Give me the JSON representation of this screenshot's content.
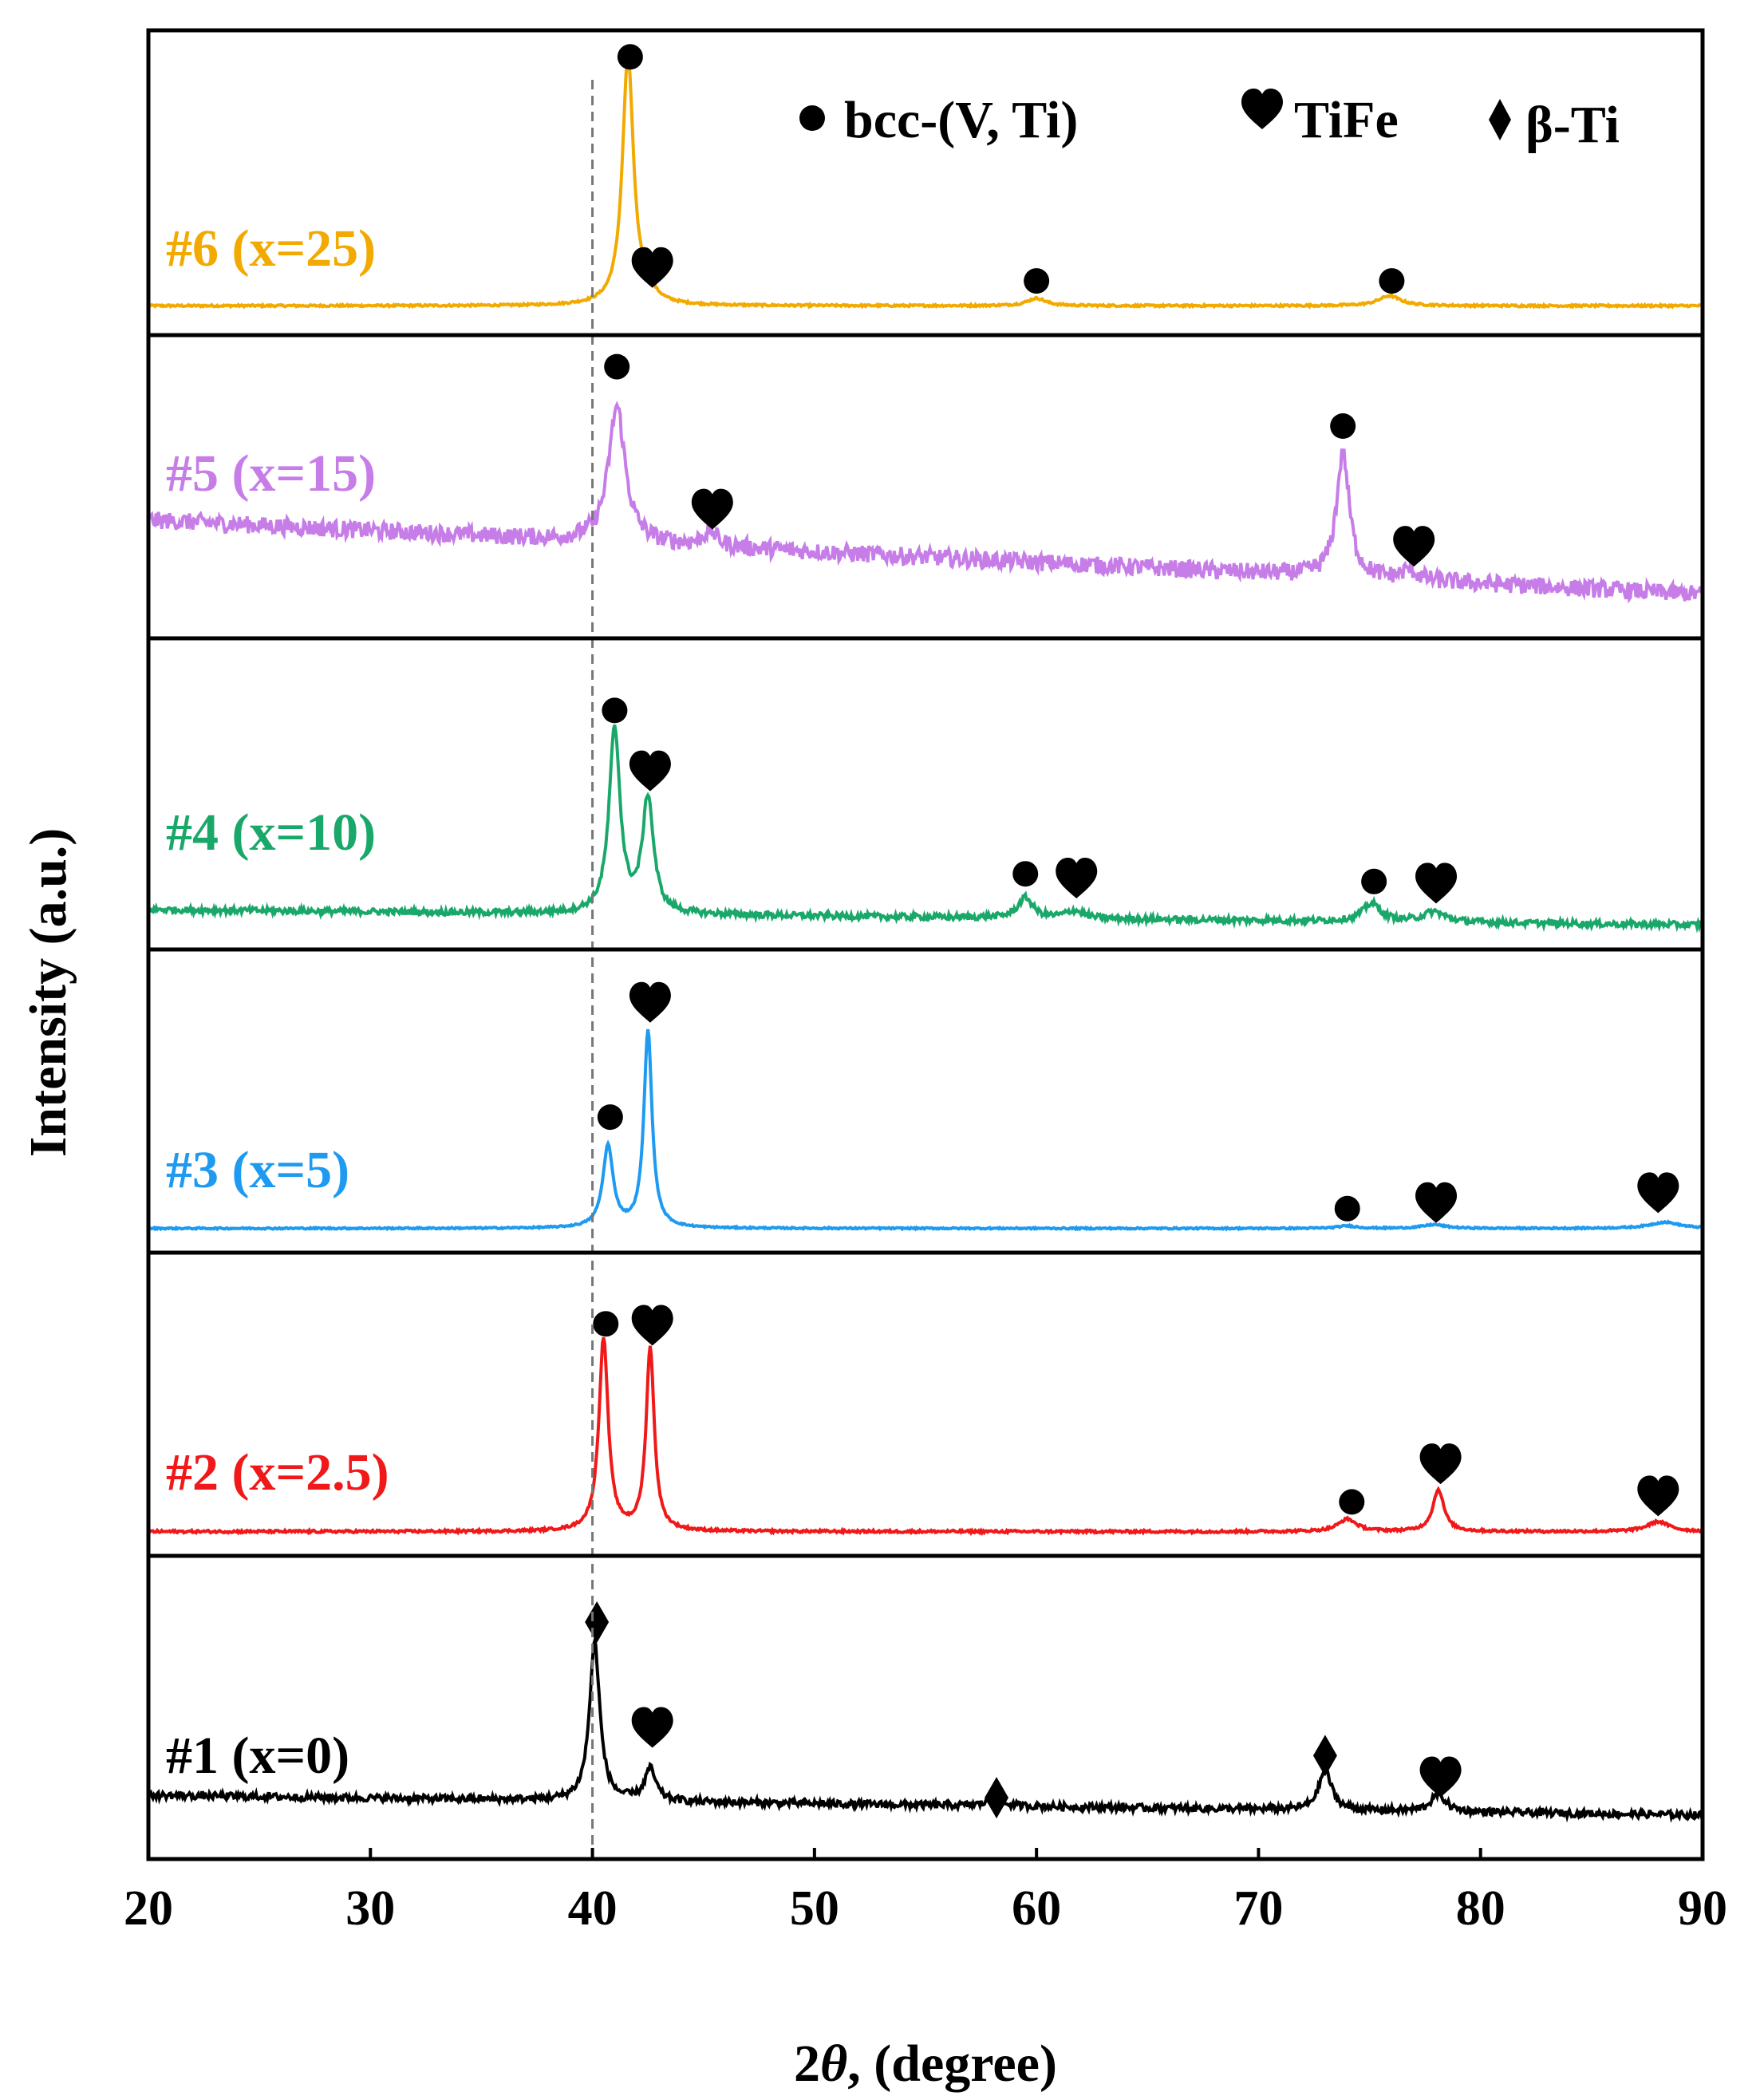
{
  "chart_data": {
    "type": "line",
    "title": "",
    "xlabel": "2θ, (degree)",
    "xlabel_prefix": "2",
    "xlabel_theta": "θ",
    "xlabel_suffix": ", (degree)",
    "ylabel": "Intensity (a.u.)",
    "xlim": [
      20,
      90
    ],
    "xticks": [
      "20",
      "30",
      "40",
      "50",
      "60",
      "70",
      "80",
      "90"
    ],
    "reference_line_x": 40,
    "legend": [
      {
        "symbol": "circle",
        "label": "bcc-(V, Ti)"
      },
      {
        "symbol": "heart",
        "label": "TiFe"
      },
      {
        "symbol": "diamond",
        "label": "β-Ti"
      }
    ],
    "series": [
      {
        "name": "#6 (x=25)",
        "color": "#F2A900",
        "noise": 0.004,
        "baseline_start": 0.06,
        "baseline_end": 0.06,
        "peaks": [
          {
            "x": 41.6,
            "h": 1.0,
            "w": 0.3
          },
          {
            "x": 42.4,
            "h": 0.05,
            "w": 0.4
          },
          {
            "x": 60.0,
            "h": 0.03,
            "w": 0.5
          },
          {
            "x": 75.9,
            "h": 0.04,
            "w": 0.6
          }
        ],
        "markers": [
          {
            "x": 41.7,
            "symbol": "circle",
            "level": 1.06
          },
          {
            "x": 42.7,
            "symbol": "heart",
            "level": 0.19
          },
          {
            "x": 60.0,
            "symbol": "circle",
            "level": 0.16
          },
          {
            "x": 76.0,
            "symbol": "circle",
            "level": 0.16
          }
        ]
      },
      {
        "name": "#5 (x=15)",
        "color": "#C77DE8",
        "noise": 0.035,
        "baseline_start": 0.42,
        "baseline_end": 0.12,
        "peaks": [
          {
            "x": 41.1,
            "h": 0.55,
            "w": 0.45
          },
          {
            "x": 45.3,
            "h": 0.06,
            "w": 0.4
          },
          {
            "x": 73.8,
            "h": 0.5,
            "w": 0.35
          },
          {
            "x": 76.8,
            "h": 0.04,
            "w": 0.4
          }
        ],
        "markers": [
          {
            "x": 41.1,
            "symbol": "circle",
            "level": 1.04
          },
          {
            "x": 45.4,
            "symbol": "heart",
            "level": 0.44
          },
          {
            "x": 73.8,
            "symbol": "circle",
            "level": 0.8
          },
          {
            "x": 77.0,
            "symbol": "heart",
            "level": 0.29
          }
        ]
      },
      {
        "name": "#4 (x=10)",
        "color": "#1AA86A",
        "noise": 0.012,
        "baseline_start": 0.1,
        "baseline_end": 0.04,
        "peaks": [
          {
            "x": 41.0,
            "h": 0.72,
            "w": 0.3
          },
          {
            "x": 42.5,
            "h": 0.45,
            "w": 0.3
          },
          {
            "x": 59.5,
            "h": 0.08,
            "w": 0.4
          },
          {
            "x": 61.7,
            "h": 0.03,
            "w": 0.5
          },
          {
            "x": 75.1,
            "h": 0.07,
            "w": 0.5
          },
          {
            "x": 77.9,
            "h": 0.04,
            "w": 0.6
          }
        ],
        "markers": [
          {
            "x": 41.0,
            "symbol": "circle",
            "level": 0.88
          },
          {
            "x": 42.6,
            "symbol": "heart",
            "level": 0.62
          },
          {
            "x": 59.5,
            "symbol": "circle",
            "level": 0.24
          },
          {
            "x": 61.8,
            "symbol": "heart",
            "level": 0.2
          },
          {
            "x": 75.2,
            "symbol": "circle",
            "level": 0.21
          },
          {
            "x": 78.0,
            "symbol": "heart",
            "level": 0.18
          }
        ]
      },
      {
        "name": "#3 (x=5)",
        "color": "#1E9AF0",
        "noise": 0.003,
        "baseline_start": 0.04,
        "baseline_end": 0.04,
        "peaks": [
          {
            "x": 40.7,
            "h": 0.33,
            "w": 0.28
          },
          {
            "x": 42.5,
            "h": 0.8,
            "w": 0.22
          },
          {
            "x": 74.0,
            "h": 0.01,
            "w": 0.5
          },
          {
            "x": 77.9,
            "h": 0.015,
            "w": 0.6
          },
          {
            "x": 88.3,
            "h": 0.025,
            "w": 0.8
          }
        ],
        "markers": [
          {
            "x": 40.8,
            "symbol": "circle",
            "level": 0.49
          },
          {
            "x": 42.6,
            "symbol": "heart",
            "level": 0.93
          },
          {
            "x": 74.0,
            "symbol": "circle",
            "level": 0.12
          },
          {
            "x": 78.0,
            "symbol": "heart",
            "level": 0.12
          },
          {
            "x": 88.0,
            "symbol": "heart",
            "level": 0.16
          }
        ]
      },
      {
        "name": "#2 (x=2.5)",
        "color": "#F01818",
        "noise": 0.005,
        "baseline_start": 0.04,
        "baseline_end": 0.04,
        "peaks": [
          {
            "x": 40.5,
            "h": 0.78,
            "w": 0.25
          },
          {
            "x": 42.6,
            "h": 0.74,
            "w": 0.22
          },
          {
            "x": 74.0,
            "h": 0.05,
            "w": 0.5
          },
          {
            "x": 78.1,
            "h": 0.17,
            "w": 0.3
          },
          {
            "x": 88.0,
            "h": 0.04,
            "w": 0.6
          }
        ],
        "markers": [
          {
            "x": 40.6,
            "symbol": "circle",
            "level": 0.88
          },
          {
            "x": 42.7,
            "symbol": "heart",
            "level": 0.85
          },
          {
            "x": 74.2,
            "symbol": "circle",
            "level": 0.16
          },
          {
            "x": 78.2,
            "symbol": "heart",
            "level": 0.29
          },
          {
            "x": 88.0,
            "symbol": "heart",
            "level": 0.16
          }
        ]
      },
      {
        "name": "#1 (x=0)",
        "color": "#000000",
        "noise": 0.014,
        "baseline_start": 0.2,
        "baseline_end": 0.12,
        "peaks": [
          {
            "x": 40.1,
            "h": 0.64,
            "w": 0.28
          },
          {
            "x": 42.6,
            "h": 0.13,
            "w": 0.3
          },
          {
            "x": 58.1,
            "h": 0.03,
            "w": 0.4
          },
          {
            "x": 73.0,
            "h": 0.16,
            "w": 0.35
          },
          {
            "x": 78.1,
            "h": 0.07,
            "w": 0.4
          }
        ],
        "markers": [
          {
            "x": 40.2,
            "symbol": "diamond",
            "level": 0.9
          },
          {
            "x": 42.7,
            "symbol": "heart",
            "level": 0.45
          },
          {
            "x": 58.2,
            "symbol": "diamond",
            "level": 0.19
          },
          {
            "x": 73.0,
            "symbol": "diamond",
            "level": 0.36
          },
          {
            "x": 78.2,
            "symbol": "heart",
            "level": 0.25
          }
        ]
      }
    ]
  }
}
